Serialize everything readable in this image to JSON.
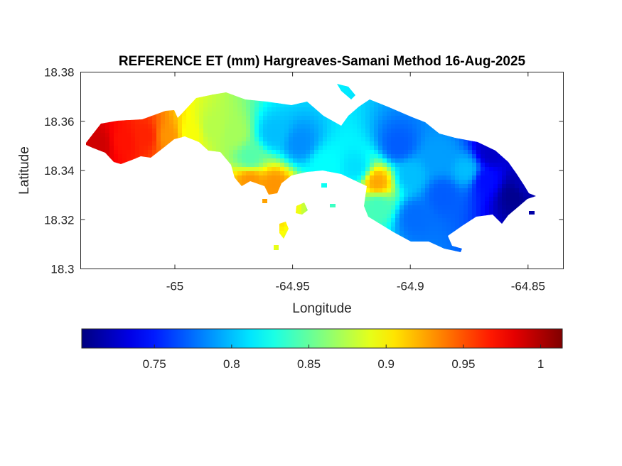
{
  "chart_data": {
    "type": "heatmap",
    "title": "REFERENCE ET (mm) Hargreaves-Samani Method  16-Aug-2025",
    "xlabel": "Longitude",
    "ylabel": "Latitude",
    "xlim": [
      -65.04,
      -64.835
    ],
    "ylim": [
      18.3,
      18.38
    ],
    "xticks": [
      -65,
      -64.95,
      -64.9,
      -64.85
    ],
    "xtick_labels": [
      "-65",
      "-64.95",
      "-64.9",
      "-64.85"
    ],
    "yticks": [
      18.3,
      18.32,
      18.34,
      18.36,
      18.38
    ],
    "ytick_labels": [
      "18.3",
      "18.32",
      "18.34",
      "18.36",
      "18.38"
    ],
    "colorbar": {
      "colormap": "jet",
      "range": [
        0.703,
        1.014
      ],
      "ticks": [
        0.75,
        0.8,
        0.85,
        0.9,
        0.95,
        1
      ],
      "tick_labels": [
        "0.75",
        "0.8",
        "0.85",
        "0.9",
        "0.95",
        "1"
      ],
      "location": "south"
    },
    "field_anchors": [
      {
        "lon": -65.032,
        "lat": 18.351,
        "v": 0.99
      },
      {
        "lon": -65.022,
        "lat": 18.352,
        "v": 0.97
      },
      {
        "lon": -65.012,
        "lat": 18.354,
        "v": 0.965
      },
      {
        "lon": -65.003,
        "lat": 18.354,
        "v": 0.93
      },
      {
        "lon": -64.993,
        "lat": 18.355,
        "v": 0.895
      },
      {
        "lon": -64.984,
        "lat": 18.357,
        "v": 0.875
      },
      {
        "lon": -64.975,
        "lat": 18.355,
        "v": 0.87
      },
      {
        "lon": -64.968,
        "lat": 18.345,
        "v": 0.845
      },
      {
        "lon": -64.968,
        "lat": 18.336,
        "v": 0.93
      },
      {
        "lon": -64.958,
        "lat": 18.334,
        "v": 0.93
      },
      {
        "lon": -64.958,
        "lat": 18.355,
        "v": 0.8
      },
      {
        "lon": -64.947,
        "lat": 18.351,
        "v": 0.785
      },
      {
        "lon": -64.936,
        "lat": 18.342,
        "v": 0.82
      },
      {
        "lon": -64.923,
        "lat": 18.341,
        "v": 0.81
      },
      {
        "lon": -64.914,
        "lat": 18.335,
        "v": 0.925
      },
      {
        "lon": -64.914,
        "lat": 18.326,
        "v": 0.84
      },
      {
        "lon": -64.905,
        "lat": 18.35,
        "v": 0.77
      },
      {
        "lon": -64.9,
        "lat": 18.338,
        "v": 0.8
      },
      {
        "lon": -64.898,
        "lat": 18.321,
        "v": 0.775
      },
      {
        "lon": -64.888,
        "lat": 18.345,
        "v": 0.79
      },
      {
        "lon": -64.886,
        "lat": 18.33,
        "v": 0.77
      },
      {
        "lon": -64.876,
        "lat": 18.34,
        "v": 0.8
      },
      {
        "lon": -64.868,
        "lat": 18.336,
        "v": 0.745
      },
      {
        "lon": -64.866,
        "lat": 18.347,
        "v": 0.725
      },
      {
        "lon": -64.856,
        "lat": 18.33,
        "v": 0.708
      },
      {
        "lon": -64.852,
        "lat": 18.334,
        "v": 0.72
      }
    ]
  }
}
